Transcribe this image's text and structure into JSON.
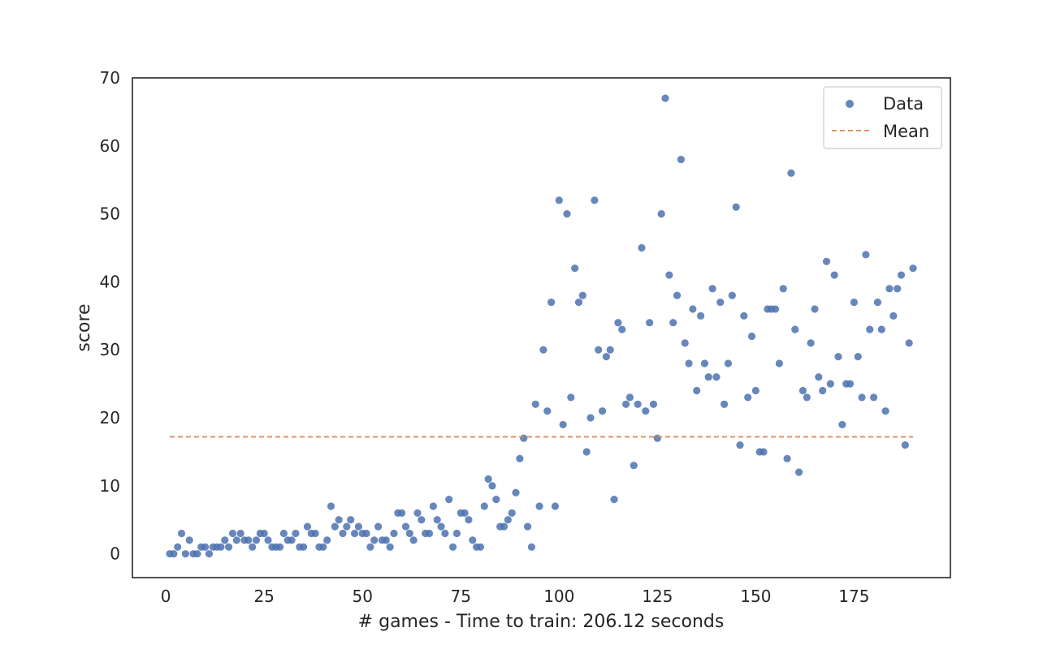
{
  "chart_data": {
    "type": "scatter",
    "xlabel": "# games - Time to train: 206.12 seconds",
    "ylabel": "score",
    "xlim": [
      -8.5,
      199.5
    ],
    "ylim": [
      -3.5,
      70.0
    ],
    "xticks": [
      0,
      25,
      50,
      75,
      100,
      125,
      150,
      175
    ],
    "yticks": [
      0,
      10,
      20,
      30,
      40,
      50,
      60,
      70
    ],
    "grid": false,
    "legend_position": "upper-right",
    "colors": {
      "data": "#4c72b0",
      "mean": "#dd8452",
      "axes": "#262626"
    },
    "series": [
      {
        "name": "Data",
        "kind": "scatter",
        "x": [
          1,
          2,
          3,
          4,
          5,
          6,
          7,
          8,
          9,
          10,
          11,
          12,
          13,
          14,
          15,
          16,
          17,
          18,
          19,
          20,
          21,
          22,
          23,
          24,
          25,
          26,
          27,
          28,
          29,
          30,
          31,
          32,
          33,
          34,
          35,
          36,
          37,
          38,
          39,
          40,
          41,
          42,
          43,
          44,
          45,
          46,
          47,
          48,
          49,
          50,
          51,
          52,
          53,
          54,
          55,
          56,
          57,
          58,
          59,
          60,
          61,
          62,
          63,
          64,
          65,
          66,
          67,
          68,
          69,
          70,
          71,
          72,
          73,
          74,
          75,
          76,
          77,
          78,
          79,
          80,
          81,
          82,
          83,
          84,
          85,
          86,
          87,
          88,
          89,
          90,
          91,
          92,
          93,
          94,
          95,
          96,
          97,
          98,
          99,
          100,
          101,
          102,
          103,
          104,
          105,
          106,
          107,
          108,
          109,
          110,
          111,
          112,
          113,
          114,
          115,
          116,
          117,
          118,
          119,
          120,
          121,
          122,
          123,
          124,
          125,
          126,
          127,
          128,
          129,
          130,
          131,
          132,
          133,
          134,
          135,
          136,
          137,
          138,
          139,
          140,
          141,
          142,
          143,
          144,
          145,
          146,
          147,
          148,
          149,
          150,
          151,
          152,
          153,
          154,
          155,
          156,
          157,
          158,
          159,
          160,
          161,
          162,
          163,
          164,
          165,
          166,
          167,
          168,
          169,
          170,
          171,
          172,
          173,
          174,
          175,
          176,
          177,
          178,
          179,
          180,
          181,
          182,
          183,
          184,
          185,
          186,
          187,
          188,
          189,
          190
        ],
        "y": [
          0,
          0,
          1,
          3,
          0,
          2,
          0,
          0,
          1,
          1,
          0,
          1,
          1,
          1,
          2,
          1,
          3,
          2,
          3,
          2,
          2,
          1,
          2,
          3,
          3,
          2,
          1,
          1,
          1,
          3,
          2,
          2,
          3,
          1,
          1,
          4,
          3,
          3,
          1,
          1,
          2,
          7,
          4,
          5,
          3,
          4,
          5,
          3,
          4,
          3,
          3,
          1,
          2,
          4,
          2,
          2,
          1,
          3,
          6,
          6,
          4,
          3,
          2,
          6,
          5,
          3,
          3,
          7,
          5,
          4,
          3,
          8,
          1,
          3,
          6,
          6,
          5,
          2,
          1,
          1,
          7,
          11,
          10,
          8,
          4,
          4,
          5,
          6,
          9,
          14,
          17,
          4,
          1,
          22,
          7,
          30,
          21,
          37,
          7,
          52,
          19,
          50,
          23,
          42,
          37,
          38,
          15,
          20,
          52,
          30,
          21,
          29,
          30,
          8,
          34,
          33,
          22,
          23,
          13,
          22,
          45,
          21,
          34,
          22,
          17,
          50,
          67,
          41,
          34,
          38,
          58,
          31,
          28,
          36,
          24,
          35,
          28,
          26,
          39,
          26,
          37,
          22,
          28,
          38,
          51,
          16,
          35,
          23,
          32,
          24,
          15,
          15,
          36,
          36,
          36,
          28,
          39,
          14,
          56,
          33,
          12,
          24,
          23,
          31,
          36,
          26,
          24,
          43,
          25,
          41,
          29,
          19,
          25,
          25,
          37,
          29,
          23,
          44,
          33,
          23,
          37,
          33,
          21,
          39,
          35,
          39,
          41,
          16,
          31,
          42
        ]
      },
      {
        "name": "Mean",
        "kind": "line",
        "style": "dashed",
        "x": [
          1,
          190
        ],
        "y": [
          17.2,
          17.2
        ]
      }
    ]
  }
}
